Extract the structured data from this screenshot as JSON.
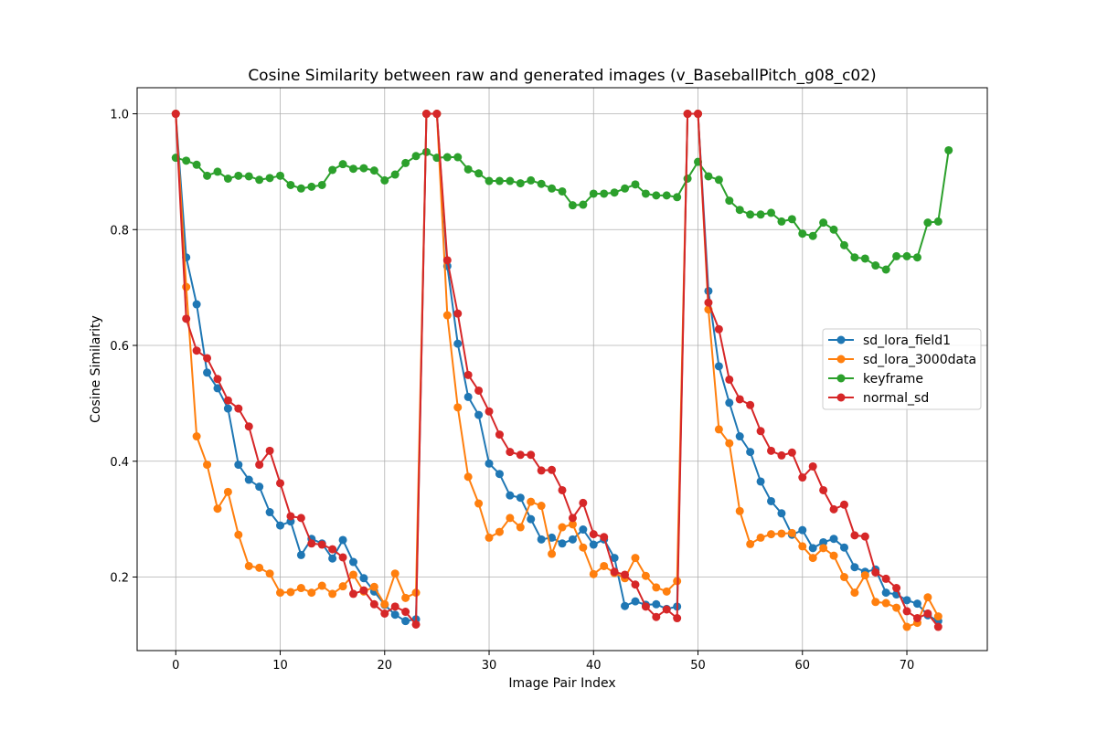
{
  "chart_data": {
    "type": "line",
    "title": "Cosine Similarity between raw and generated images (v_BaseballPitch_g08_c02)",
    "xlabel": "Image Pair Index",
    "ylabel": "Cosine Similarity",
    "xlim": [
      -3.7,
      77.7
    ],
    "ylim": [
      0.073,
      1.045
    ],
    "xticks": [
      0,
      10,
      20,
      30,
      40,
      50,
      60,
      70
    ],
    "yticks": [
      0.2,
      0.4,
      0.6,
      0.8,
      1.0
    ],
    "ytick_labels": [
      "0.2",
      "0.4",
      "0.6",
      "0.8",
      "1.0"
    ],
    "grid": true,
    "legend_position": "center-right",
    "series": [
      {
        "name": "sd_lora_field1",
        "color": "#1f77b4",
        "values": [
          1.0,
          0.752,
          0.671,
          0.553,
          0.526,
          0.491,
          0.394,
          0.368,
          0.356,
          0.312,
          0.289,
          0.296,
          0.238,
          0.266,
          0.258,
          0.232,
          0.264,
          0.226,
          0.198,
          0.175,
          0.152,
          0.135,
          0.124,
          0.127,
          1.0,
          1.0,
          0.737,
          0.603,
          0.511,
          0.48,
          0.396,
          0.378,
          0.341,
          0.337,
          0.3,
          0.265,
          0.268,
          0.258,
          0.265,
          0.282,
          0.256,
          0.265,
          0.233,
          0.15,
          0.158,
          0.152,
          0.153,
          0.145,
          0.149,
          1.0,
          1.0,
          0.694,
          0.564,
          0.501,
          0.443,
          0.416,
          0.365,
          0.331,
          0.31,
          0.273,
          0.281,
          0.25,
          0.26,
          0.266,
          0.251,
          0.217,
          0.209,
          0.213,
          0.173,
          0.17,
          0.16,
          0.154,
          0.134,
          0.124
        ]
      },
      {
        "name": "sd_lora_3000data",
        "color": "#ff7f0e",
        "values": [
          1.0,
          0.701,
          0.443,
          0.394,
          0.318,
          0.347,
          0.273,
          0.219,
          0.216,
          0.206,
          0.173,
          0.174,
          0.181,
          0.173,
          0.185,
          0.171,
          0.184,
          0.204,
          0.175,
          0.183,
          0.153,
          0.206,
          0.164,
          0.173,
          1.0,
          1.0,
          0.652,
          0.493,
          0.373,
          0.327,
          0.268,
          0.278,
          0.302,
          0.286,
          0.33,
          0.323,
          0.24,
          0.286,
          0.291,
          0.251,
          0.205,
          0.219,
          0.207,
          0.198,
          0.233,
          0.202,
          0.182,
          0.175,
          0.193,
          1.0,
          1.0,
          0.662,
          0.455,
          0.431,
          0.314,
          0.257,
          0.268,
          0.274,
          0.275,
          0.276,
          0.253,
          0.233,
          0.25,
          0.237,
          0.2,
          0.173,
          0.203,
          0.157,
          0.155,
          0.147,
          0.114,
          0.121,
          0.165,
          0.132
        ]
      },
      {
        "name": "keyframe",
        "color": "#2ca02c",
        "values": [
          0.924,
          0.919,
          0.912,
          0.893,
          0.9,
          0.888,
          0.893,
          0.892,
          0.886,
          0.889,
          0.893,
          0.877,
          0.871,
          0.874,
          0.877,
          0.903,
          0.913,
          0.905,
          0.906,
          0.902,
          0.885,
          0.895,
          0.915,
          0.927,
          0.934,
          0.924,
          0.925,
          0.925,
          0.904,
          0.897,
          0.884,
          0.884,
          0.884,
          0.88,
          0.885,
          0.879,
          0.871,
          0.866,
          0.842,
          0.843,
          0.862,
          0.862,
          0.864,
          0.871,
          0.878,
          0.862,
          0.859,
          0.859,
          0.856,
          0.888,
          0.917,
          0.892,
          0.886,
          0.85,
          0.834,
          0.826,
          0.826,
          0.829,
          0.814,
          0.818,
          0.793,
          0.789,
          0.812,
          0.8,
          0.773,
          0.752,
          0.75,
          0.738,
          0.731,
          0.754,
          0.754,
          0.752,
          0.812,
          0.814,
          0.937
        ]
      },
      {
        "name": "normal_sd",
        "color": "#d62728",
        "values": [
          1.0,
          0.646,
          0.591,
          0.578,
          0.542,
          0.505,
          0.491,
          0.46,
          0.394,
          0.418,
          0.362,
          0.305,
          0.302,
          0.258,
          0.256,
          0.248,
          0.234,
          0.171,
          0.177,
          0.153,
          0.137,
          0.149,
          0.14,
          0.118,
          1.0,
          1.0,
          0.747,
          0.655,
          0.549,
          0.522,
          0.486,
          0.446,
          0.416,
          0.411,
          0.411,
          0.384,
          0.385,
          0.35,
          0.302,
          0.328,
          0.274,
          0.269,
          0.209,
          0.204,
          0.187,
          0.149,
          0.131,
          0.144,
          0.129,
          1.0,
          1.0,
          0.674,
          0.628,
          0.541,
          0.507,
          0.497,
          0.452,
          0.418,
          0.41,
          0.415,
          0.372,
          0.391,
          0.35,
          0.317,
          0.325,
          0.272,
          0.27,
          0.208,
          0.197,
          0.181,
          0.141,
          0.129,
          0.137,
          0.114
        ]
      }
    ]
  }
}
